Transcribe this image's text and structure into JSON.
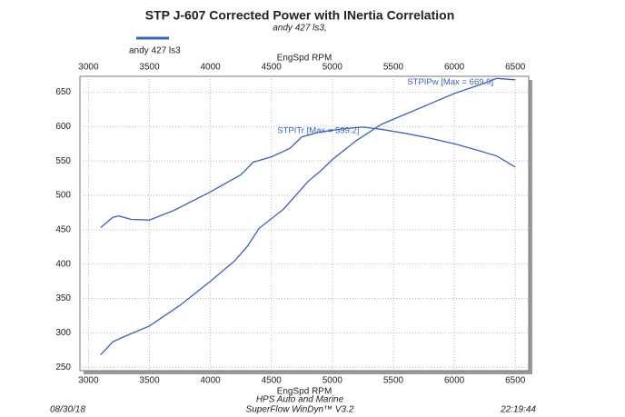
{
  "chart_data": {
    "type": "line",
    "title": "STP J-607 Corrected Power with INertia Correlation",
    "subtitle": "andy 427 ls3,",
    "legend_label": "andy 427 ls3",
    "x_label": "EngSpd RPM",
    "xlim": [
      2930,
      6610
    ],
    "ylim": [
      245,
      673
    ],
    "xticks": [
      3000,
      3500,
      4000,
      4500,
      5000,
      5500,
      6000,
      6500
    ],
    "yticks": [
      250,
      300,
      350,
      400,
      450,
      500,
      550,
      600,
      650
    ],
    "grid": true,
    "series": [
      {
        "name": "STPIPw [Max = 669.9]",
        "color": "#3a63b8",
        "x": [
          3100,
          3200,
          3300,
          3500,
          3750,
          4000,
          4200,
          4300,
          4400,
          4600,
          4800,
          4900,
          5000,
          5200,
          5400,
          5600,
          5800,
          6000,
          6200,
          6350,
          6500
        ],
        "values": [
          268,
          287,
          295,
          310,
          340,
          375,
          405,
          425,
          452,
          480,
          520,
          535,
          552,
          580,
          603,
          618,
          633,
          648,
          660,
          669.9,
          668
        ]
      },
      {
        "name": "STPITr [Max = 599.2]",
        "color": "#3a63b8",
        "x": [
          3100,
          3200,
          3250,
          3350,
          3500,
          3700,
          4000,
          4150,
          4250,
          4350,
          4500,
          4650,
          4750,
          4900,
          5100,
          5250,
          5400,
          5600,
          5800,
          6000,
          6200,
          6350,
          6500
        ],
        "values": [
          453,
          468,
          470,
          465,
          464,
          478,
          505,
          520,
          530,
          548,
          556,
          568,
          585,
          592,
          597,
          599.2,
          596,
          590,
          583,
          575,
          565,
          557,
          541
        ]
      }
    ],
    "footer": {
      "date": "08/30/18",
      "company": "HPS Auto and Marine",
      "software": "SuperFlow WinDyn™ V3.2",
      "time": "22:19:44"
    }
  }
}
